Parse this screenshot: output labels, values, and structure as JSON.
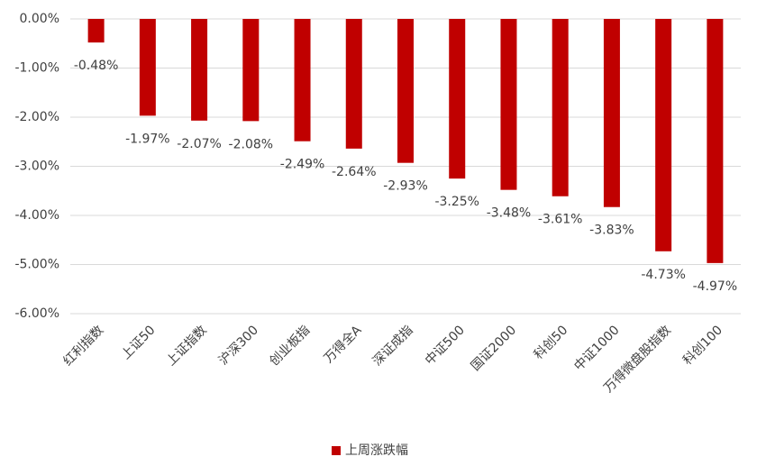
{
  "chart_data": {
    "type": "bar",
    "categories": [
      "红利指数",
      "上证50",
      "上证指数",
      "沪深300",
      "创业板指",
      "万得全A",
      "深证成指",
      "中证500",
      "国证2000",
      "科创50",
      "中证1000",
      "万得微盘股指数",
      "科创100"
    ],
    "series": [
      {
        "name": "上周涨跌幅",
        "color": "#c00000",
        "values": [
          -0.48,
          -1.97,
          -2.07,
          -2.08,
          -2.49,
          -2.64,
          -2.93,
          -3.25,
          -3.48,
          -3.61,
          -3.83,
          -4.73,
          -4.97
        ],
        "value_labels": [
          "-0.48%",
          "-1.97%",
          "-2.07%",
          "-2.08%",
          "-2.49%",
          "-2.64%",
          "-2.93%",
          "-3.25%",
          "-3.48%",
          "-3.61%",
          "-3.83%",
          "-4.73%",
          "-4.97%"
        ]
      }
    ],
    "ylim": [
      -6,
      0
    ],
    "yticks": [
      {
        "value": 0,
        "label": "0.00%"
      },
      {
        "value": -1,
        "label": "-1.00%"
      },
      {
        "value": -2,
        "label": "-2.00%"
      },
      {
        "value": -3,
        "label": "-3.00%"
      },
      {
        "value": -4,
        "label": "-4.00%"
      },
      {
        "value": -5,
        "label": "-5.00%"
      },
      {
        "value": -6,
        "label": "-6.00%"
      }
    ],
    "grid": true,
    "legend": "bottom"
  }
}
